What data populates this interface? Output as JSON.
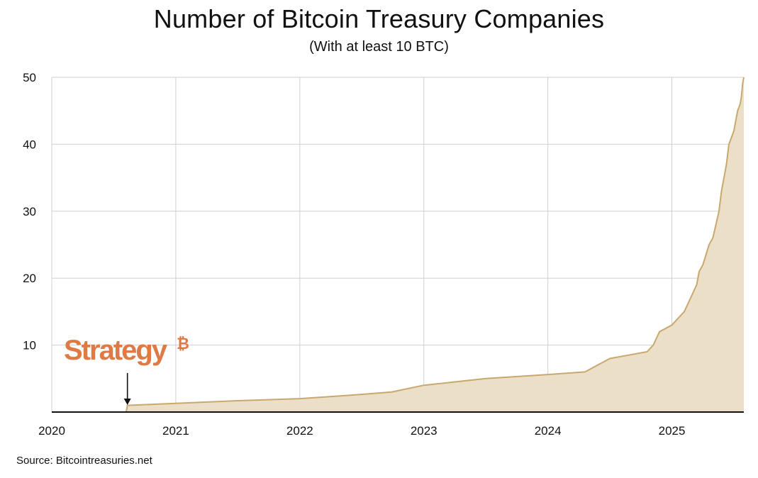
{
  "header": {
    "title": "Number of Bitcoin Treasury Companies",
    "subtitle": "(With at least 10 BTC)"
  },
  "footer": {
    "source": "Source: Bitcointreasuries.net"
  },
  "annotation": {
    "brand_text": "Strategy",
    "brand_mark": "₿",
    "brand_color": "#e07a45",
    "target_x": 2020.61
  },
  "colors": {
    "area_fill": "#ecdfc7",
    "line": "#c9a870",
    "grid": "#d0d0d0",
    "axis": "#111111"
  },
  "chart_data": {
    "type": "area",
    "title": "Number of Bitcoin Treasury Companies",
    "subtitle": "(With at least 10 BTC)",
    "xlabel": "",
    "ylabel": "",
    "xlim": [
      2020.0,
      2025.58
    ],
    "ylim": [
      0,
      50
    ],
    "x_ticks": [
      2020,
      2021,
      2022,
      2023,
      2024,
      2025
    ],
    "x_tick_labels": [
      "2020",
      "2021",
      "2022",
      "2023",
      "2024",
      "2025"
    ],
    "y_ticks": [
      10,
      20,
      30,
      40,
      50
    ],
    "y_tick_labels": [
      "10",
      "20",
      "30",
      "40",
      "50"
    ],
    "grid": true,
    "series": [
      {
        "x": [
          2020.0,
          2020.6,
          2020.61,
          2021.0,
          2021.5,
          2022.0,
          2022.4,
          2022.74,
          2023.0,
          2023.5,
          2024.0,
          2024.3,
          2024.4,
          2024.5,
          2024.8,
          2024.85,
          2024.9,
          2025.0,
          2025.05,
          2025.1,
          2025.15,
          2025.2,
          2025.22,
          2025.25,
          2025.3,
          2025.33,
          2025.38,
          2025.4,
          2025.42,
          2025.44,
          2025.46,
          2025.48,
          2025.5,
          2025.52,
          2025.53,
          2025.55,
          2025.56,
          2025.57,
          2025.58
        ],
        "values": [
          0,
          0,
          1,
          1.3,
          1.7,
          2,
          2.5,
          3,
          4,
          5,
          5.6,
          6,
          7,
          8,
          9,
          10,
          12,
          13,
          14,
          15,
          17,
          19,
          21,
          22,
          25,
          26,
          30,
          33,
          35,
          37,
          40,
          41,
          42,
          44,
          45,
          46,
          47,
          49,
          50
        ]
      }
    ]
  }
}
